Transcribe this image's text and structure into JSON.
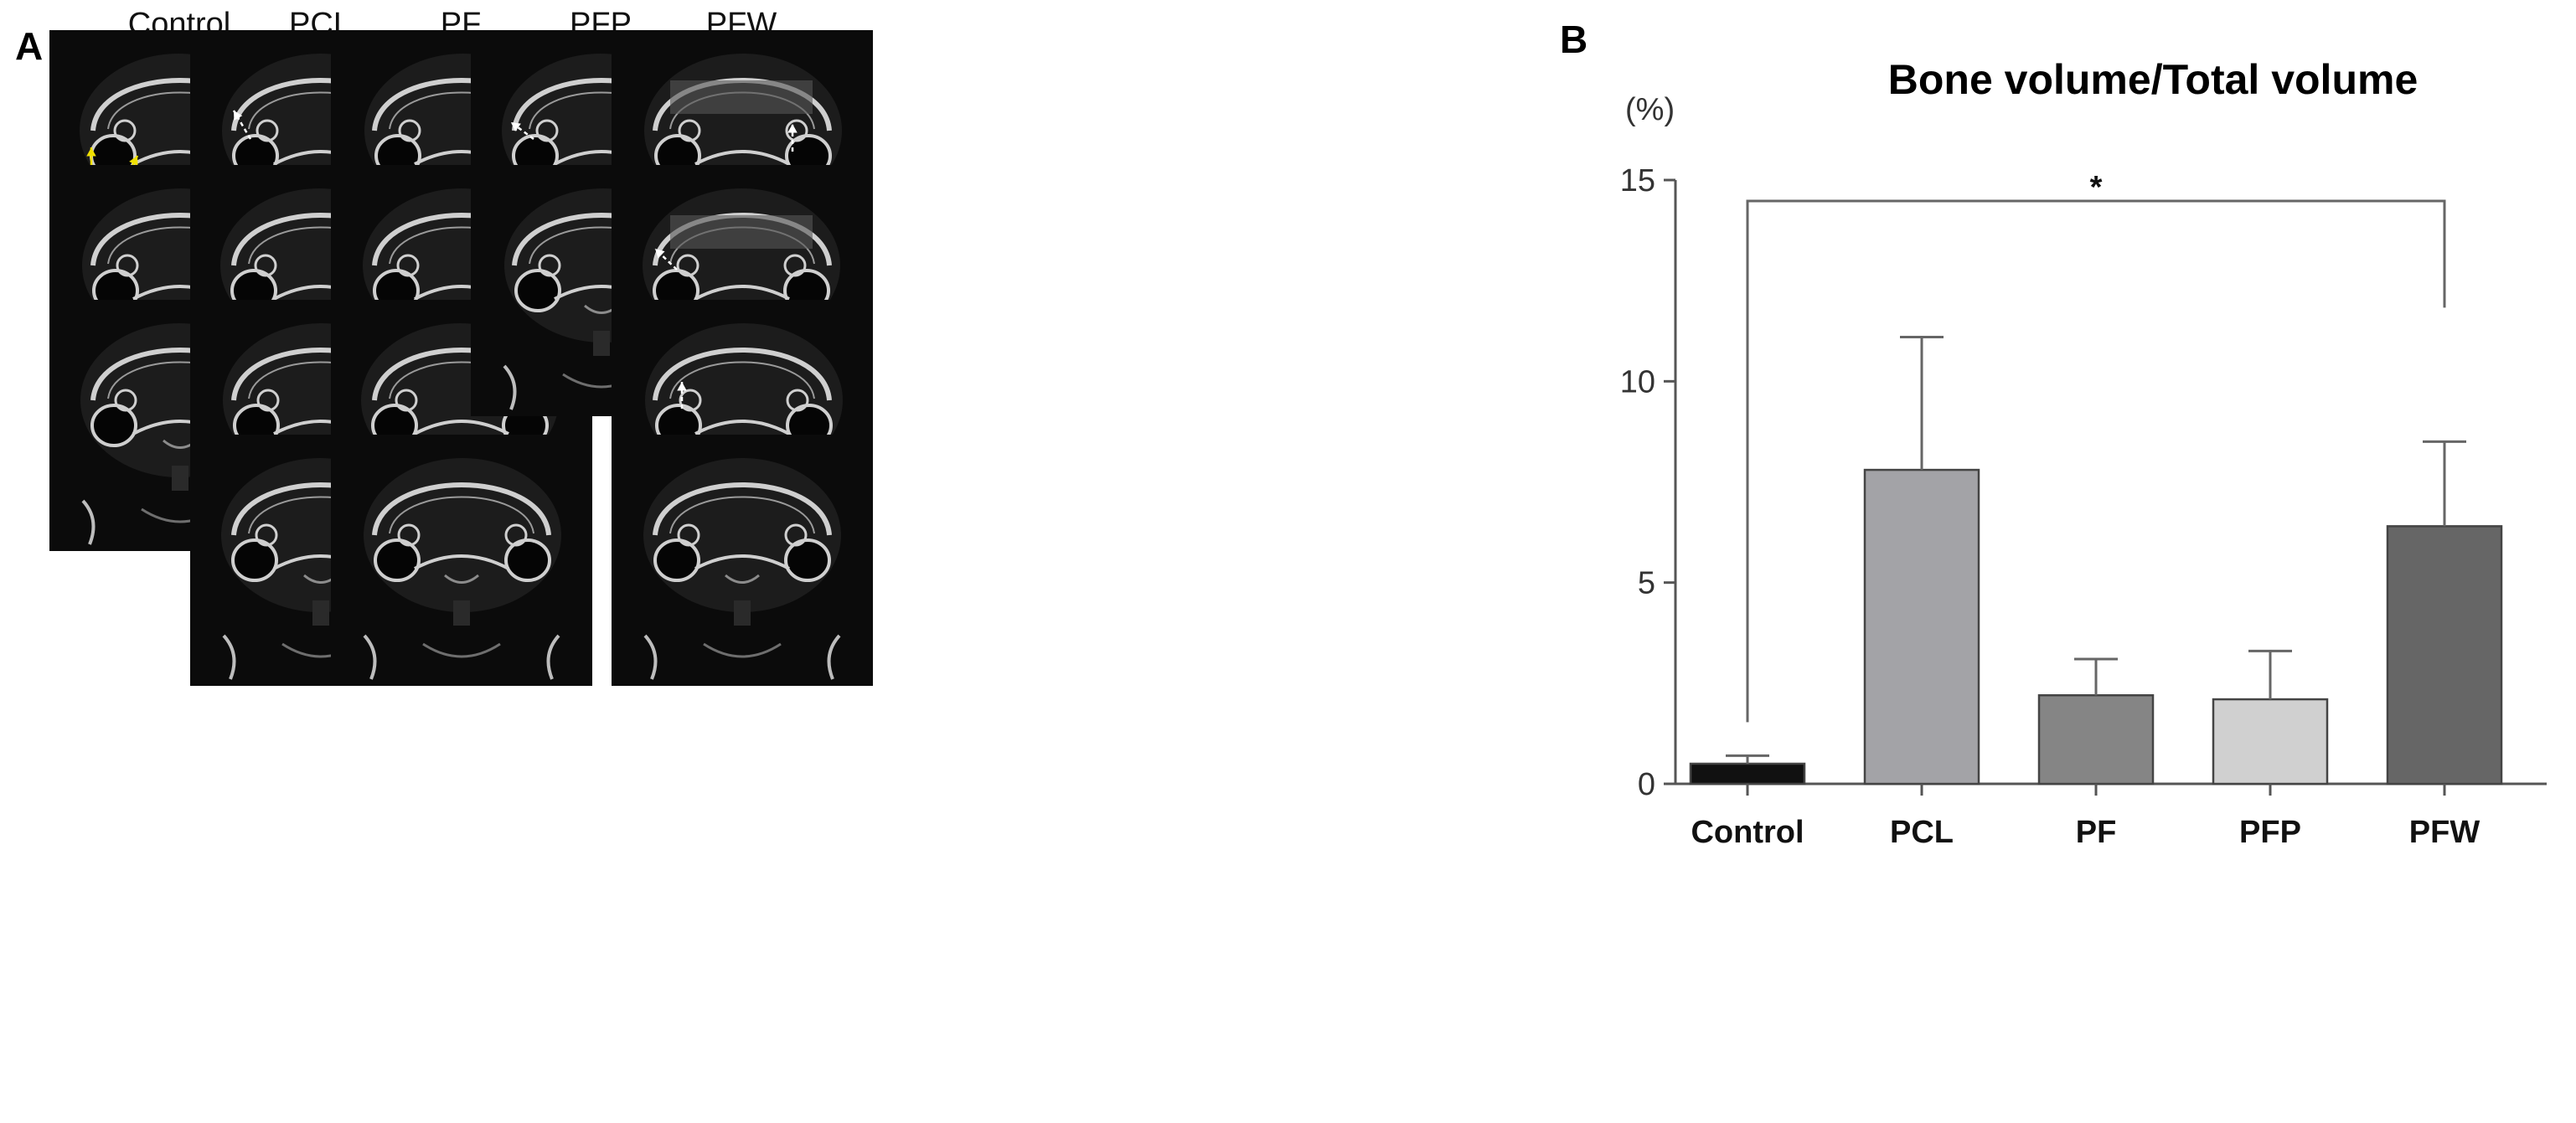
{
  "panel_a": {
    "letter": "A",
    "columns": [
      "Control",
      "PCL",
      "PF",
      "PFP",
      "PFW"
    ],
    "column_row_counts": [
      3,
      4,
      4,
      2,
      4
    ]
  },
  "panel_b": {
    "letter": "B"
  },
  "colors": {
    "tile_background": "#0b0b0b",
    "bone": "#cfcfcf",
    "yellow_arrow": "#f0e000",
    "white_arrow": "#ffffff"
  },
  "chart_data": {
    "type": "bar",
    "title": "Bone volume/Total volume",
    "yunit": "(%)",
    "categories": [
      "Control",
      "PCL",
      "PF",
      "PFP",
      "PFW"
    ],
    "values": [
      0.5,
      7.8,
      2.2,
      2.1,
      6.4
    ],
    "errors": [
      0.2,
      3.3,
      0.9,
      1.2,
      2.1
    ],
    "bar_colors": [
      "#111111",
      "#a3a3a7",
      "#858585",
      "#d0d0d0",
      "#666666"
    ],
    "ylim": [
      0,
      15
    ],
    "yticks": [
      0,
      5,
      10,
      15
    ],
    "ytick_labels": [
      "0",
      "5",
      "10",
      "15"
    ],
    "significance": {
      "from": "Control",
      "to": "PFW",
      "label": "*"
    },
    "grid": false,
    "legend": "none"
  }
}
